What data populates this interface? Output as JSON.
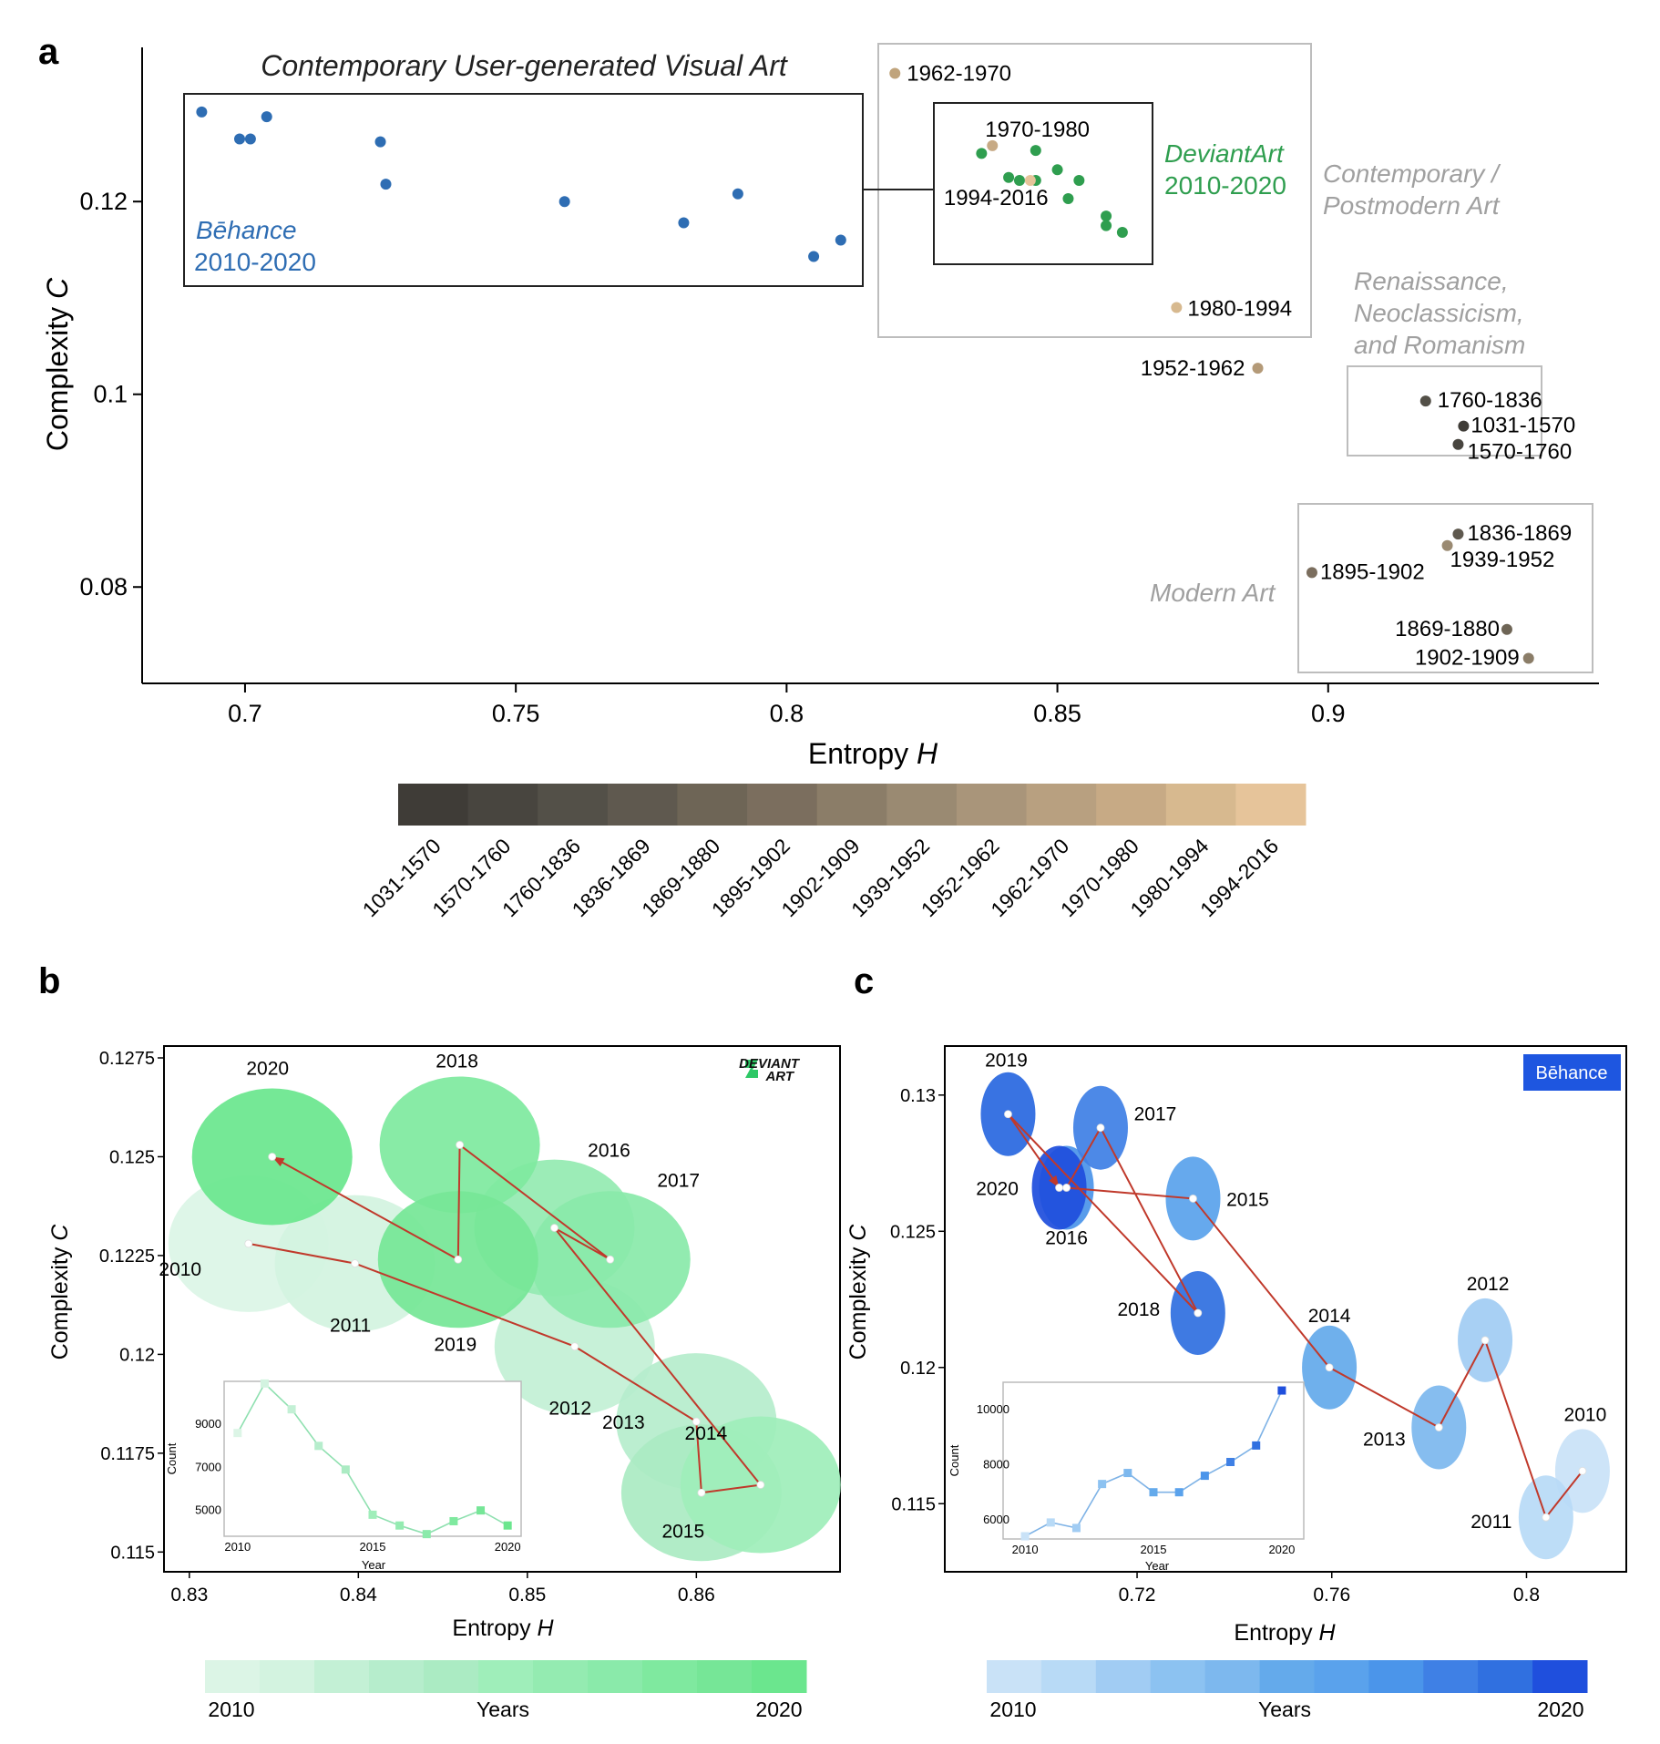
{
  "panels": {
    "a": "a",
    "b": "b",
    "c": "c"
  },
  "chart_data": [
    {
      "id": "a",
      "type": "scatter",
      "xlabel": "Entropy",
      "xlabel_var": "H",
      "ylabel": "Complexity",
      "ylabel_var": "C",
      "xlim": [
        0.681,
        0.95
      ],
      "ylim": [
        0.07,
        0.136
      ],
      "xticks": [
        "0.7",
        "0.75",
        "0.8",
        "0.85",
        "0.9"
      ],
      "yticks": [
        "0.08",
        "0.1",
        "0.12"
      ],
      "group_labels": {
        "ugva_title": "Contemporary User-generated Visual Art",
        "behance": [
          "Bēhance",
          "2010-2020"
        ],
        "deviantart": [
          "DeviantArt",
          "2010-2020"
        ],
        "contemporary": [
          "Contemporary /",
          "Postmodern Art"
        ],
        "renaissance": [
          "Renaissance,",
          "Neoclassicism,",
          "and Romanism"
        ],
        "modern": "Modern Art"
      },
      "colors": {
        "behance": "#2e6db3",
        "deviantart": "#2f9e4f",
        "ugva_text": "#222222",
        "behance_text": "#2e6db3",
        "deviantart_text": "#2f9e4f",
        "group_text": "#a0a0a0"
      },
      "behance_points": [
        {
          "x": 0.692,
          "y": 0.1293
        },
        {
          "x": 0.699,
          "y": 0.1265
        },
        {
          "x": 0.701,
          "y": 0.1265
        },
        {
          "x": 0.704,
          "y": 0.1288
        },
        {
          "x": 0.725,
          "y": 0.1262
        },
        {
          "x": 0.726,
          "y": 0.1218
        },
        {
          "x": 0.759,
          "y": 0.12
        },
        {
          "x": 0.781,
          "y": 0.1178
        },
        {
          "x": 0.791,
          "y": 0.1208
        },
        {
          "x": 0.805,
          "y": 0.1143
        },
        {
          "x": 0.81,
          "y": 0.116
        }
      ],
      "deviantart_points": [
        {
          "x": 0.836,
          "y": 0.125
        },
        {
          "x": 0.841,
          "y": 0.1225
        },
        {
          "x": 0.843,
          "y": 0.1222
        },
        {
          "x": 0.846,
          "y": 0.1222
        },
        {
          "x": 0.846,
          "y": 0.1253
        },
        {
          "x": 0.85,
          "y": 0.1233
        },
        {
          "x": 0.852,
          "y": 0.1203
        },
        {
          "x": 0.854,
          "y": 0.1222
        },
        {
          "x": 0.859,
          "y": 0.1185
        },
        {
          "x": 0.859,
          "y": 0.1175
        },
        {
          "x": 0.862,
          "y": 0.1168
        }
      ],
      "period_points": [
        {
          "label": "1962-1970",
          "x": 0.82,
          "y": 0.1333,
          "color": "#c0a47c"
        },
        {
          "label": "1970-1980",
          "x": 0.838,
          "y": 0.1258,
          "color": "#c7aa85"
        },
        {
          "label": "1994-2016",
          "x": 0.845,
          "y": 0.1222,
          "color": "#e6c49a"
        },
        {
          "label": "1980-1994",
          "x": 0.872,
          "y": 0.109,
          "color": "#d7b98f"
        },
        {
          "label": "1952-1962",
          "x": 0.887,
          "y": 0.1027,
          "color": "#b49a78"
        },
        {
          "label": "1760-1836",
          "x": 0.918,
          "y": 0.0993,
          "color": "#535048"
        },
        {
          "label": "1031-1570",
          "x": 0.925,
          "y": 0.0967,
          "color": "#3f3c37"
        },
        {
          "label": "1570-1760",
          "x": 0.924,
          "y": 0.0948,
          "color": "#48453f"
        },
        {
          "label": "1836-1869",
          "x": 0.924,
          "y": 0.0855,
          "color": "#5f594f"
        },
        {
          "label": "1939-1952",
          "x": 0.922,
          "y": 0.0843,
          "color": "#9a8a72"
        },
        {
          "label": "1895-1902",
          "x": 0.897,
          "y": 0.0815,
          "color": "#7b6e5e"
        },
        {
          "label": "1869-1880",
          "x": 0.933,
          "y": 0.0756,
          "color": "#6e6556"
        },
        {
          "label": "1902-1909",
          "x": 0.937,
          "y": 0.0726,
          "color": "#8b7d68"
        }
      ],
      "colorbar": {
        "labels": [
          "1031-1570",
          "1570-1760",
          "1760-1836",
          "1836-1869",
          "1869-1880",
          "1895-1902",
          "1902-1909",
          "1939-1952",
          "1952-1962",
          "1962-1970",
          "1970-1980",
          "1980-1994",
          "1994-2016"
        ],
        "colors": [
          "#3f3c37",
          "#48453f",
          "#535048",
          "#5f594f",
          "#6e6556",
          "#7b6e5e",
          "#8b7d68",
          "#9a8a72",
          "#a9957a",
          "#b8a080",
          "#c7aa85",
          "#d7b98f",
          "#e6c49a"
        ]
      }
    },
    {
      "id": "b",
      "type": "scatter",
      "xlabel": "Entropy",
      "xlabel_var": "H",
      "ylabel": "Complexity",
      "ylabel_var": "C",
      "xlim": [
        0.8285,
        0.8685
      ],
      "ylim": [
        0.1145,
        0.1278
      ],
      "xticks": [
        "0.83",
        "0.84",
        "0.85",
        "0.86"
      ],
      "yticks": [
        "0.115",
        "0.1175",
        "0.12",
        "0.1225",
        "0.125",
        "0.1275"
      ],
      "logo_text": [
        "DEVIANT",
        "ART"
      ],
      "logo_color": "#2ec866",
      "trajectory_color": "#c0392b",
      "points": [
        {
          "year": "2010",
          "x": 0.8335,
          "y": 0.1228,
          "color": "#dcf5e6"
        },
        {
          "year": "2011",
          "x": 0.8398,
          "y": 0.1223,
          "color": "#d3f3e0"
        },
        {
          "year": "2012",
          "x": 0.8528,
          "y": 0.1202,
          "color": "#c3f0d5"
        },
        {
          "year": "2013",
          "x": 0.86,
          "y": 0.1183,
          "color": "#b6edcc"
        },
        {
          "year": "2014",
          "x": 0.8603,
          "y": 0.1165,
          "color": "#abebc3"
        },
        {
          "year": "2015",
          "x": 0.8638,
          "y": 0.1167,
          "color": "#9feeba"
        },
        {
          "year": "2016",
          "x": 0.8516,
          "y": 0.1232,
          "color": "#94ebb1"
        },
        {
          "year": "2017",
          "x": 0.8549,
          "y": 0.1224,
          "color": "#8aeaaa"
        },
        {
          "year": "2018",
          "x": 0.846,
          "y": 0.1253,
          "color": "#7fe99f"
        },
        {
          "year": "2019",
          "x": 0.8459,
          "y": 0.1224,
          "color": "#76e697"
        },
        {
          "year": "2020",
          "x": 0.8349,
          "y": 0.125,
          "color": "#6be68e"
        }
      ],
      "inset": {
        "xlabel": "Year",
        "ylabel": "Count",
        "xlim": [
          2009.5,
          2020.5
        ],
        "ylim": [
          3800,
          11000
        ],
        "xticks": [
          "2010",
          "2015",
          "2020"
        ],
        "yticks": [
          "5000",
          "7000",
          "9000"
        ],
        "years": [
          2010,
          2011,
          2012,
          2013,
          2014,
          2015,
          2016,
          2017,
          2018,
          2019,
          2020
        ],
        "counts": [
          8600,
          10900,
          9700,
          8000,
          6900,
          4800,
          4300,
          3900,
          4500,
          5000,
          4300
        ]
      },
      "colorbar": {
        "left_label": "2010",
        "mid_label": "Years",
        "right_label": "2020",
        "colors": [
          "#dcf5e6",
          "#d3f3e0",
          "#c3f0d5",
          "#b6edcc",
          "#abebc3",
          "#9feeba",
          "#94ebb1",
          "#8aeaaa",
          "#7fe99f",
          "#76e697",
          "#6be68e"
        ]
      }
    },
    {
      "id": "c",
      "type": "scatter",
      "xlabel": "Entropy",
      "xlabel_var": "H",
      "ylabel": "Complexity",
      "ylabel_var": "C",
      "xlim": [
        0.6805,
        0.8205
      ],
      "ylim": [
        0.1125,
        0.1318
      ],
      "xticks": [
        "0.72",
        "0.76",
        "0.8"
      ],
      "yticks": [
        "0.115",
        "0.12",
        "0.125",
        "0.13"
      ],
      "logo_text": "Bēhance",
      "logo_color": "#1e56e0",
      "trajectory_color": "#c0392b",
      "points": [
        {
          "year": "2010",
          "x": 0.8115,
          "y": 0.1162,
          "color": "#c9e2f7"
        },
        {
          "year": "2011",
          "x": 0.804,
          "y": 0.1145,
          "color": "#b8daf6"
        },
        {
          "year": "2012",
          "x": 0.7915,
          "y": 0.121,
          "color": "#a1ccf3"
        },
        {
          "year": "2013",
          "x": 0.782,
          "y": 0.1178,
          "color": "#7db8ee"
        },
        {
          "year": "2014",
          "x": 0.7595,
          "y": 0.12,
          "color": "#64aaeb"
        },
        {
          "year": "2015",
          "x": 0.7315,
          "y": 0.1262,
          "color": "#5aa2ec"
        },
        {
          "year": "2016",
          "x": 0.7055,
          "y": 0.1266,
          "color": "#4b95ea"
        },
        {
          "year": "2017",
          "x": 0.7125,
          "y": 0.1288,
          "color": "#3f80e5"
        },
        {
          "year": "2018",
          "x": 0.7325,
          "y": 0.122,
          "color": "#3070e0"
        },
        {
          "year": "2019",
          "x": 0.6935,
          "y": 0.1293,
          "color": "#2a68e0"
        },
        {
          "year": "2020",
          "x": 0.704,
          "y": 0.1266,
          "color": "#1f4fdd"
        }
      ],
      "inset": {
        "xlabel": "Year",
        "ylabel": "Count",
        "xlim": [
          2009.5,
          2020.5
        ],
        "ylim": [
          5300,
          11000
        ],
        "xticks": [
          "2010",
          "2015",
          "2020"
        ],
        "yticks": [
          "6000",
          "8000",
          "10000"
        ],
        "years": [
          2010,
          2011,
          2012,
          2013,
          2014,
          2015,
          2016,
          2017,
          2018,
          2019,
          2020
        ],
        "counts": [
          5400,
          5900,
          5700,
          7300,
          7700,
          7000,
          7000,
          7600,
          8100,
          8700,
          10700
        ]
      },
      "colorbar": {
        "left_label": "2010",
        "mid_label": "Years",
        "right_label": "2020",
        "colors": [
          "#c9e2f7",
          "#b8daf6",
          "#a1ccf3",
          "#8cc2f1",
          "#7db8ee",
          "#64aaeb",
          "#5aa2ec",
          "#4b95ea",
          "#3f80e5",
          "#3070e0",
          "#1f4fdd"
        ]
      }
    }
  ]
}
